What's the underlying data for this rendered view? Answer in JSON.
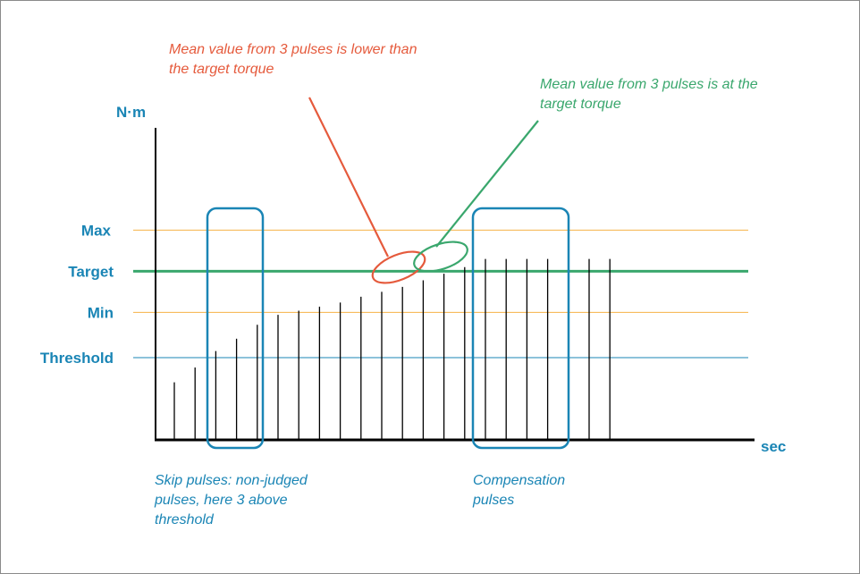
{
  "colors": {
    "blue": "#1a85b5",
    "orange": "#f6b347",
    "green": "#3aa76d",
    "red": "#e55a3c",
    "axis": "#000000"
  },
  "axes": {
    "y_label": "N·m",
    "x_label": "sec"
  },
  "levels": {
    "max": "Max",
    "target": "Target",
    "min": "Min",
    "threshold": "Threshold"
  },
  "level_values": {
    "threshold": 1,
    "min": 1.55,
    "target": 2.05,
    "max": 2.55
  },
  "pulses": {
    "heights": [
      0.7,
      0.88,
      1.08,
      1.23,
      1.4,
      1.52,
      1.57,
      1.62,
      1.67,
      1.74,
      1.8,
      1.86,
      1.94,
      2.02,
      2.1,
      2.2,
      2.2,
      2.2,
      2.2,
      2.2,
      2.2,
      2.2
    ],
    "skip_pulse_indices": [
      2,
      3,
      4
    ],
    "compensation_pulse_indices": [
      16,
      17,
      18,
      19,
      20,
      21
    ]
  },
  "annotations": {
    "mean_low": "Mean value from 3 pulses is lower than\nthe target torque",
    "mean_at_target": "Mean value from 3 pulses is at the\ntarget torque",
    "skip_pulses": "Skip pulses: non-judged\npulses, here 3 above\nthreshold",
    "compensation_pulses": "Compensation\npulses"
  }
}
